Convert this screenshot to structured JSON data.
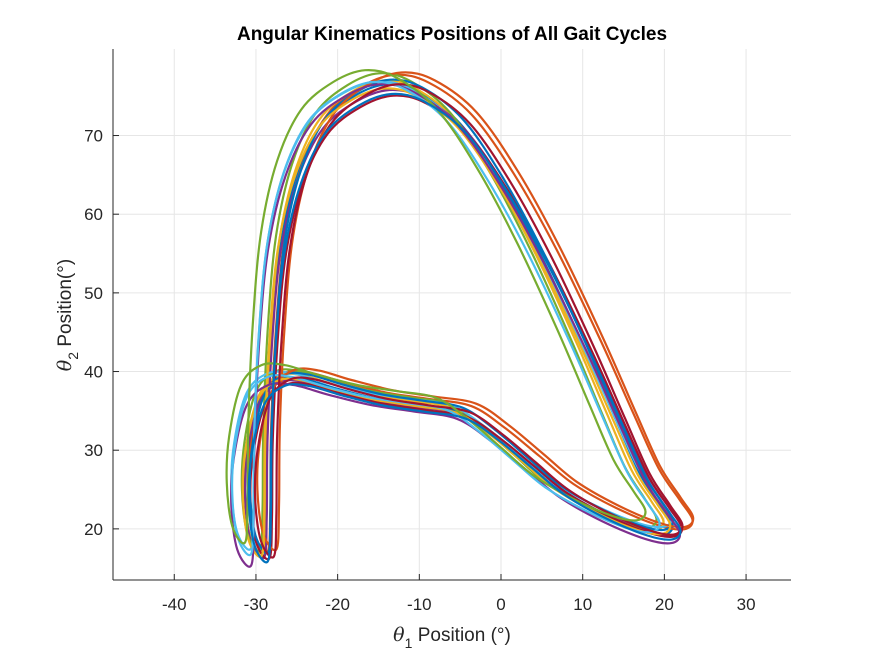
{
  "chart_data": {
    "type": "line",
    "title": "Angular Kinematics Positions of All Gait Cycles",
    "xlabel": {
      "symbol": "θ",
      "subscript": "1",
      "text": " Position (°)"
    },
    "ylabel": {
      "symbol": "θ",
      "subscript": "2",
      "text": " Position(°)"
    },
    "xlim": [
      -47.5,
      35.5
    ],
    "ylim": [
      13.5,
      81
    ],
    "xticks": [
      -40,
      -30,
      -20,
      -10,
      0,
      10,
      20,
      30
    ],
    "yticks": [
      20,
      30,
      40,
      50,
      60,
      70
    ],
    "xtick_labels": [
      "-40",
      "-30",
      "-20",
      "-10",
      "0",
      "10",
      "20",
      "30"
    ],
    "ytick_labels": [
      "20",
      "30",
      "40",
      "50",
      "60",
      "70"
    ],
    "grid": true,
    "legend": "none",
    "base_cycle": [
      [
        -29.0,
        16.5
      ],
      [
        -28.7,
        22.0
      ],
      [
        -28.6,
        32.0
      ],
      [
        -28.0,
        45.0
      ],
      [
        -27.0,
        56.0
      ],
      [
        -25.0,
        65.0
      ],
      [
        -22.0,
        71.5
      ],
      [
        -18.0,
        75.0
      ],
      [
        -14.0,
        76.5
      ],
      [
        -10.0,
        75.5
      ],
      [
        -5.0,
        71.5
      ],
      [
        0.0,
        64.0
      ],
      [
        5.0,
        54.5
      ],
      [
        10.0,
        43.5
      ],
      [
        14.0,
        34.0
      ],
      [
        17.0,
        27.0
      ],
      [
        19.5,
        23.0
      ],
      [
        21.0,
        20.5
      ],
      [
        20.0,
        19.3
      ],
      [
        17.0,
        19.8
      ],
      [
        12.0,
        22.0
      ],
      [
        7.0,
        25.0
      ],
      [
        3.0,
        28.5
      ],
      [
        -1.0,
        32.0
      ],
      [
        -5.0,
        34.8
      ],
      [
        -10.0,
        35.7
      ],
      [
        -15.0,
        36.5
      ],
      [
        -20.0,
        37.8
      ],
      [
        -24.0,
        39.0
      ],
      [
        -27.0,
        39.0
      ],
      [
        -29.5,
        36.5
      ],
      [
        -31.0,
        30.0
      ],
      [
        -31.3,
        24.0
      ],
      [
        -30.6,
        18.5
      ],
      [
        -29.0,
        16.5
      ]
    ],
    "series": [
      {
        "color": "#0072BD",
        "offset": [
          0.0,
          0.0
        ],
        "scale": [
          1.0,
          1.0
        ]
      },
      {
        "color": "#D95319",
        "offset": [
          1.4,
          0.9
        ],
        "scale": [
          1.04,
          1.01
        ]
      },
      {
        "color": "#EDB120",
        "offset": [
          -0.6,
          0.5
        ],
        "scale": [
          0.98,
          1.0
        ]
      },
      {
        "color": "#7E2F8E",
        "offset": [
          0.5,
          -0.4
        ],
        "scale": [
          1.02,
          0.99
        ]
      },
      {
        "color": "#77AC30",
        "offset": [
          -1.2,
          1.1
        ],
        "scale": [
          0.97,
          1.01
        ]
      },
      {
        "color": "#4DBEEE",
        "offset": [
          -0.9,
          0.7
        ],
        "scale": [
          1.03,
          0.99
        ]
      },
      {
        "color": "#A2142F",
        "offset": [
          0.9,
          -0.8
        ],
        "scale": [
          1.01,
          0.98
        ]
      },
      {
        "color": "#0072BD",
        "offset": [
          0.3,
          0.6
        ],
        "scale": [
          0.99,
          1.0
        ]
      },
      {
        "color": "#D95319",
        "offset": [
          2.0,
          1.2
        ],
        "scale": [
          1.02,
          1.01
        ]
      },
      {
        "color": "#EDB120",
        "offset": [
          -0.3,
          -0.2
        ],
        "scale": [
          1.0,
          0.99
        ]
      },
      {
        "color": "#7E2F8E",
        "offset": [
          -0.4,
          -0.6
        ],
        "scale": [
          1.05,
          1.02
        ]
      },
      {
        "color": "#4DBEEE",
        "offset": [
          -1.6,
          0.3
        ],
        "scale": [
          1.0,
          1.0
        ]
      },
      {
        "color": "#A2142F",
        "offset": [
          1.2,
          0.0
        ],
        "scale": [
          1.0,
          1.0
        ]
      },
      {
        "color": "#77AC30",
        "offset": [
          -2.8,
          1.8
        ],
        "scale": [
          0.98,
          1.0
        ]
      },
      {
        "color": "#0072BD",
        "offset": [
          0.7,
          -0.9
        ],
        "scale": [
          1.01,
          0.99
        ]
      }
    ]
  }
}
